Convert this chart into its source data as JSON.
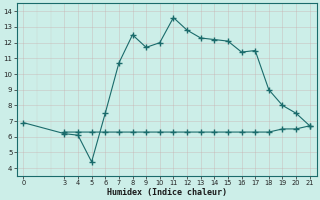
{
  "x_main": [
    0,
    3,
    4,
    5,
    6,
    7,
    8,
    9,
    10,
    11,
    12,
    13,
    14,
    15,
    16,
    17,
    18,
    19,
    20,
    21
  ],
  "y_main": [
    6.9,
    6.2,
    6.1,
    4.4,
    7.5,
    10.7,
    12.5,
    11.7,
    12.0,
    13.6,
    12.8,
    12.3,
    12.2,
    12.1,
    11.4,
    11.5,
    9.0,
    8.0,
    7.5,
    6.7
  ],
  "x_flat": [
    3,
    4,
    5,
    6,
    7,
    8,
    9,
    10,
    11,
    12,
    13,
    14,
    15,
    16,
    17,
    18,
    19,
    20,
    21
  ],
  "y_flat": [
    6.3,
    6.3,
    6.3,
    6.3,
    6.3,
    6.3,
    6.3,
    6.3,
    6.3,
    6.3,
    6.3,
    6.3,
    6.3,
    6.3,
    6.3,
    6.3,
    6.5,
    6.5,
    6.7
  ],
  "line_color": "#1a6b6b",
  "bg_color": "#cceee8",
  "grid_major_color": "#b8ddd8",
  "grid_minor_color": "#cce8e4",
  "xlabel": "Humidex (Indice chaleur)",
  "ylim": [
    3.5,
    14.5
  ],
  "xlim": [
    -0.5,
    21.5
  ],
  "yticks": [
    4,
    5,
    6,
    7,
    8,
    9,
    10,
    11,
    12,
    13,
    14
  ],
  "xticks": [
    0,
    3,
    4,
    5,
    6,
    7,
    8,
    9,
    10,
    11,
    12,
    13,
    14,
    15,
    16,
    17,
    18,
    19,
    20,
    21
  ],
  "marker": "+"
}
